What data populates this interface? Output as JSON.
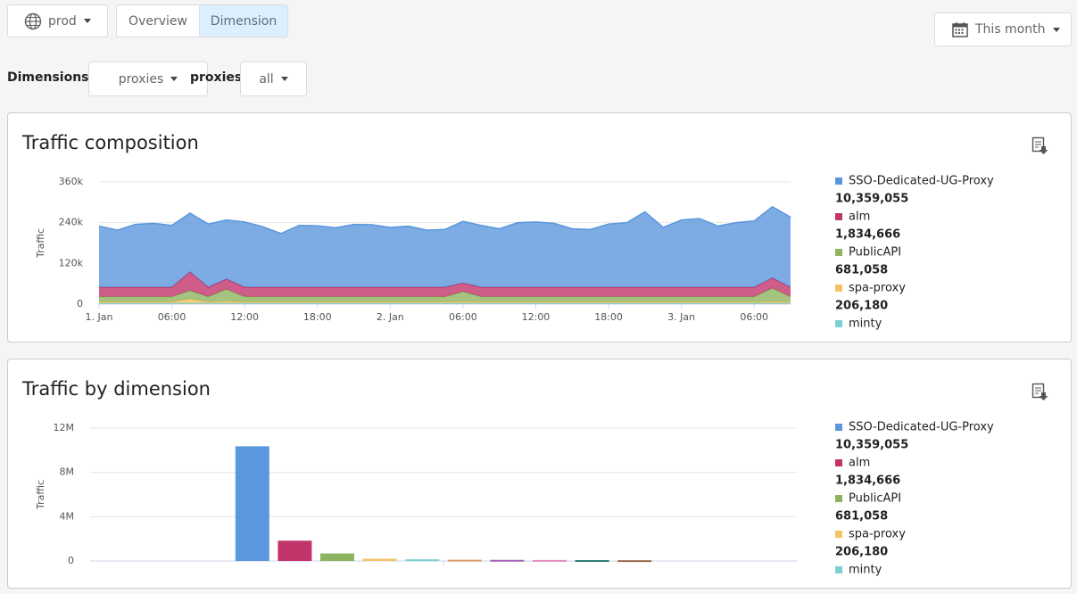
{
  "toolbar": {
    "environment": "prod",
    "tabs": [
      "Overview",
      "Dimension"
    ],
    "date_range": "This month"
  },
  "filters": {
    "label": "Dimensions",
    "dimension": "proxies",
    "value_label": "proxies",
    "value": "all"
  },
  "chart_data": [
    {
      "type": "area",
      "stacked": true,
      "grid": true,
      "title": "Traffic composition",
      "y_label": "Traffic",
      "x": [
        0,
        1.5,
        3,
        4.5,
        6,
        7.5,
        9,
        10.5,
        12,
        13.5,
        15,
        16.5,
        18,
        19.5,
        21,
        22.5,
        24,
        25.5,
        27,
        28.5,
        30,
        31.5,
        33,
        34.5,
        36,
        37.5,
        39,
        40.5,
        42,
        43.5,
        45,
        46.5,
        48,
        49.5,
        51,
        52.5,
        54,
        55.5,
        57
      ],
      "xlim": [
        0,
        57
      ],
      "xticks": [
        {
          "value": 0,
          "label": "1. Jan"
        },
        {
          "value": 6,
          "label": "06:00"
        },
        {
          "value": 12,
          "label": "12:00"
        },
        {
          "value": 18,
          "label": "18:00"
        },
        {
          "value": 24,
          "label": "2. Jan"
        },
        {
          "value": 30,
          "label": "06:00"
        },
        {
          "value": 36,
          "label": "12:00"
        },
        {
          "value": 42,
          "label": "18:00"
        },
        {
          "value": 48,
          "label": "3. Jan"
        },
        {
          "value": 54,
          "label": "06:00"
        }
      ],
      "ylim": [
        0,
        360000
      ],
      "yticks": [
        0,
        {
          "value": 120000,
          "label": "120k"
        },
        {
          "value": 240000,
          "label": "240k"
        },
        {
          "value": 360000,
          "label": "360k"
        }
      ],
      "series": [
        {
          "name": "SSO-Dedicated-UG-Proxy",
          "color": "#5b97dc",
          "total": 10359055,
          "total_label": "10,359,055",
          "values": [
            180000,
            168000,
            185000,
            188000,
            182000,
            173000,
            186000,
            174000,
            192000,
            178000,
            158000,
            182000,
            181000,
            175000,
            185000,
            184000,
            176000,
            180000,
            168000,
            170000,
            182000,
            182000,
            172000,
            190000,
            192000,
            188000,
            172000,
            170000,
            186000,
            190000,
            222000,
            176000,
            198000,
            202000,
            180000,
            190000,
            195000,
            210000,
            206000
          ]
        },
        {
          "name": "alm",
          "color": "#c2356b",
          "total": 1834666,
          "total_label": "1,834,666",
          "values": [
            28000,
            28000,
            28000,
            28000,
            28000,
            55000,
            28000,
            30000,
            28000,
            28000,
            28000,
            28000,
            28000,
            28000,
            28000,
            28000,
            28000,
            28000,
            28000,
            28000,
            25000,
            28000,
            28000,
            28000,
            28000,
            28000,
            28000,
            28000,
            28000,
            28000,
            28000,
            28000,
            28000,
            28000,
            28000,
            28000,
            28000,
            30000,
            28000
          ]
        },
        {
          "name": "PublicAPI",
          "color": "#8db560",
          "total": 681058,
          "total_label": "681,058",
          "values": [
            15000,
            15000,
            15000,
            15000,
            15000,
            25000,
            15000,
            35000,
            15000,
            15000,
            15000,
            15000,
            15000,
            15000,
            15000,
            15000,
            15000,
            15000,
            15000,
            15000,
            30000,
            15000,
            15000,
            15000,
            15000,
            15000,
            15000,
            15000,
            15000,
            15000,
            15000,
            15000,
            15000,
            15000,
            15000,
            15000,
            15000,
            40000,
            15000
          ]
        },
        {
          "name": "spa-proxy",
          "color": "#f3c366",
          "total": 206180,
          "total_label": "206,180",
          "values": [
            4000,
            4000,
            4000,
            4000,
            4000,
            12000,
            4000,
            6000,
            4000,
            4000,
            4000,
            4000,
            4000,
            4000,
            4000,
            4000,
            4000,
            4000,
            4000,
            4000,
            4000,
            4000,
            4000,
            4000,
            4000,
            4000,
            4000,
            4000,
            4000,
            4000,
            4000,
            4000,
            4000,
            4000,
            4000,
            4000,
            4000,
            4000,
            4000
          ]
        },
        {
          "name": "minty",
          "color": "#7ecfd5",
          "values": [
            3000,
            3000,
            3000,
            3000,
            3000,
            3000,
            3000,
            3000,
            3000,
            3000,
            3000,
            3000,
            3000,
            3000,
            3000,
            3000,
            3000,
            3000,
            3000,
            3000,
            3000,
            3000,
            3000,
            3000,
            3000,
            3000,
            3000,
            3000,
            3000,
            3000,
            3000,
            3000,
            3000,
            3000,
            3000,
            3000,
            3000,
            3000,
            3000
          ]
        }
      ]
    },
    {
      "type": "bar",
      "grid": true,
      "title": "Traffic by dimension",
      "y_label": "Traffic",
      "categories": [
        null,
        null,
        null,
        null,
        null,
        null,
        null,
        null,
        null,
        null
      ],
      "names": [
        "SSO-Dedicated-UG-Proxy",
        "alm",
        "PublicAPI",
        "spa-proxy",
        "minty",
        null,
        null,
        null,
        null,
        null
      ],
      "values": [
        10359055,
        1834666,
        681058,
        206180,
        150000,
        110000,
        100000,
        90000,
        80000,
        70000
      ],
      "value_labels": [
        "10,359,055",
        "1,834,666",
        "681,058",
        "206,180",
        null,
        null,
        null,
        null,
        null,
        null
      ],
      "colors": [
        "#5b97dc",
        "#c2356b",
        "#8db560",
        "#f3c366",
        "#7ecfd5",
        "#d49a6a",
        "#a35fb5",
        "#e08ab8",
        "#2f7a74",
        "#9b6a4f"
      ],
      "ylim": [
        0,
        12000000
      ],
      "yticks": [
        0,
        {
          "value": 4000000,
          "label": "4M"
        },
        {
          "value": 8000000,
          "label": "8M"
        },
        {
          "value": 12000000,
          "label": "12M"
        }
      ]
    }
  ]
}
